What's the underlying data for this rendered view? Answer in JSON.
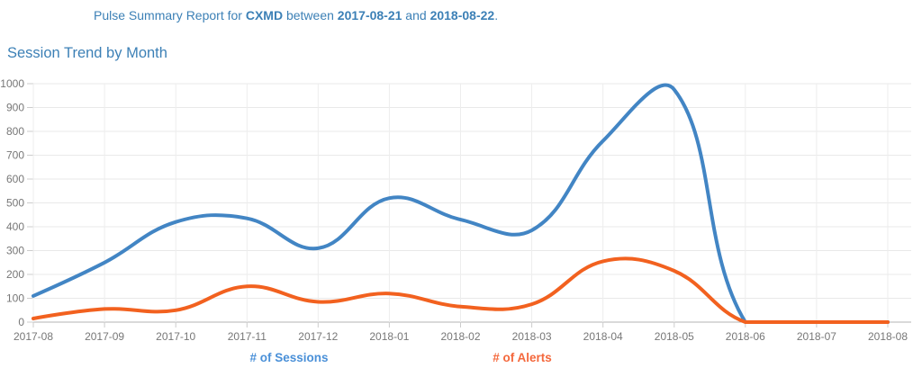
{
  "header": {
    "prefix": "Pulse Summary Report for ",
    "client": "CXMD",
    "between": " between ",
    "start_date": "2017-08-21",
    "and": " and ",
    "end_date": "2018-08-22",
    "period": "."
  },
  "section_title": "Session Trend by Month",
  "chart_data": {
    "type": "line",
    "title": "Session Trend by Month",
    "categories": [
      "2017-08",
      "2017-09",
      "2017-10",
      "2017-11",
      "2017-12",
      "2018-01",
      "2018-02",
      "2018-03",
      "2018-04",
      "2018-05",
      "2018-06",
      "2018-07",
      "2018-08"
    ],
    "series": [
      {
        "name": "# of Sessions",
        "color": "#4285c4",
        "values": [
          110,
          250,
          420,
          435,
          310,
          520,
          430,
          385,
          760,
          975,
          0,
          0,
          0
        ]
      },
      {
        "name": "# of Alerts",
        "color": "#f2611f",
        "values": [
          15,
          55,
          50,
          150,
          85,
          120,
          65,
          75,
          255,
          215,
          0,
          0,
          0
        ]
      }
    ],
    "xlabel": "",
    "ylabel": "",
    "ylim": [
      0,
      1000
    ],
    "yticks": [
      0,
      100,
      200,
      300,
      400,
      500,
      600,
      700,
      800,
      900,
      1000
    ],
    "grid": true,
    "smooth": true,
    "legend_position": "bottom"
  },
  "colors": {
    "title_text": "#3c80b6",
    "sessions_line": "#4285c4",
    "alerts_line": "#f2611f",
    "legend_sessions": "#4a90d8",
    "legend_alerts": "#f4683c",
    "tick_label": "#777777",
    "grid_line": "#e9e9e9",
    "grid_line_v": "#ededed",
    "axis_line": "#b3b3b3",
    "tick_mark": "#cccccc",
    "background": "#ffffff"
  }
}
